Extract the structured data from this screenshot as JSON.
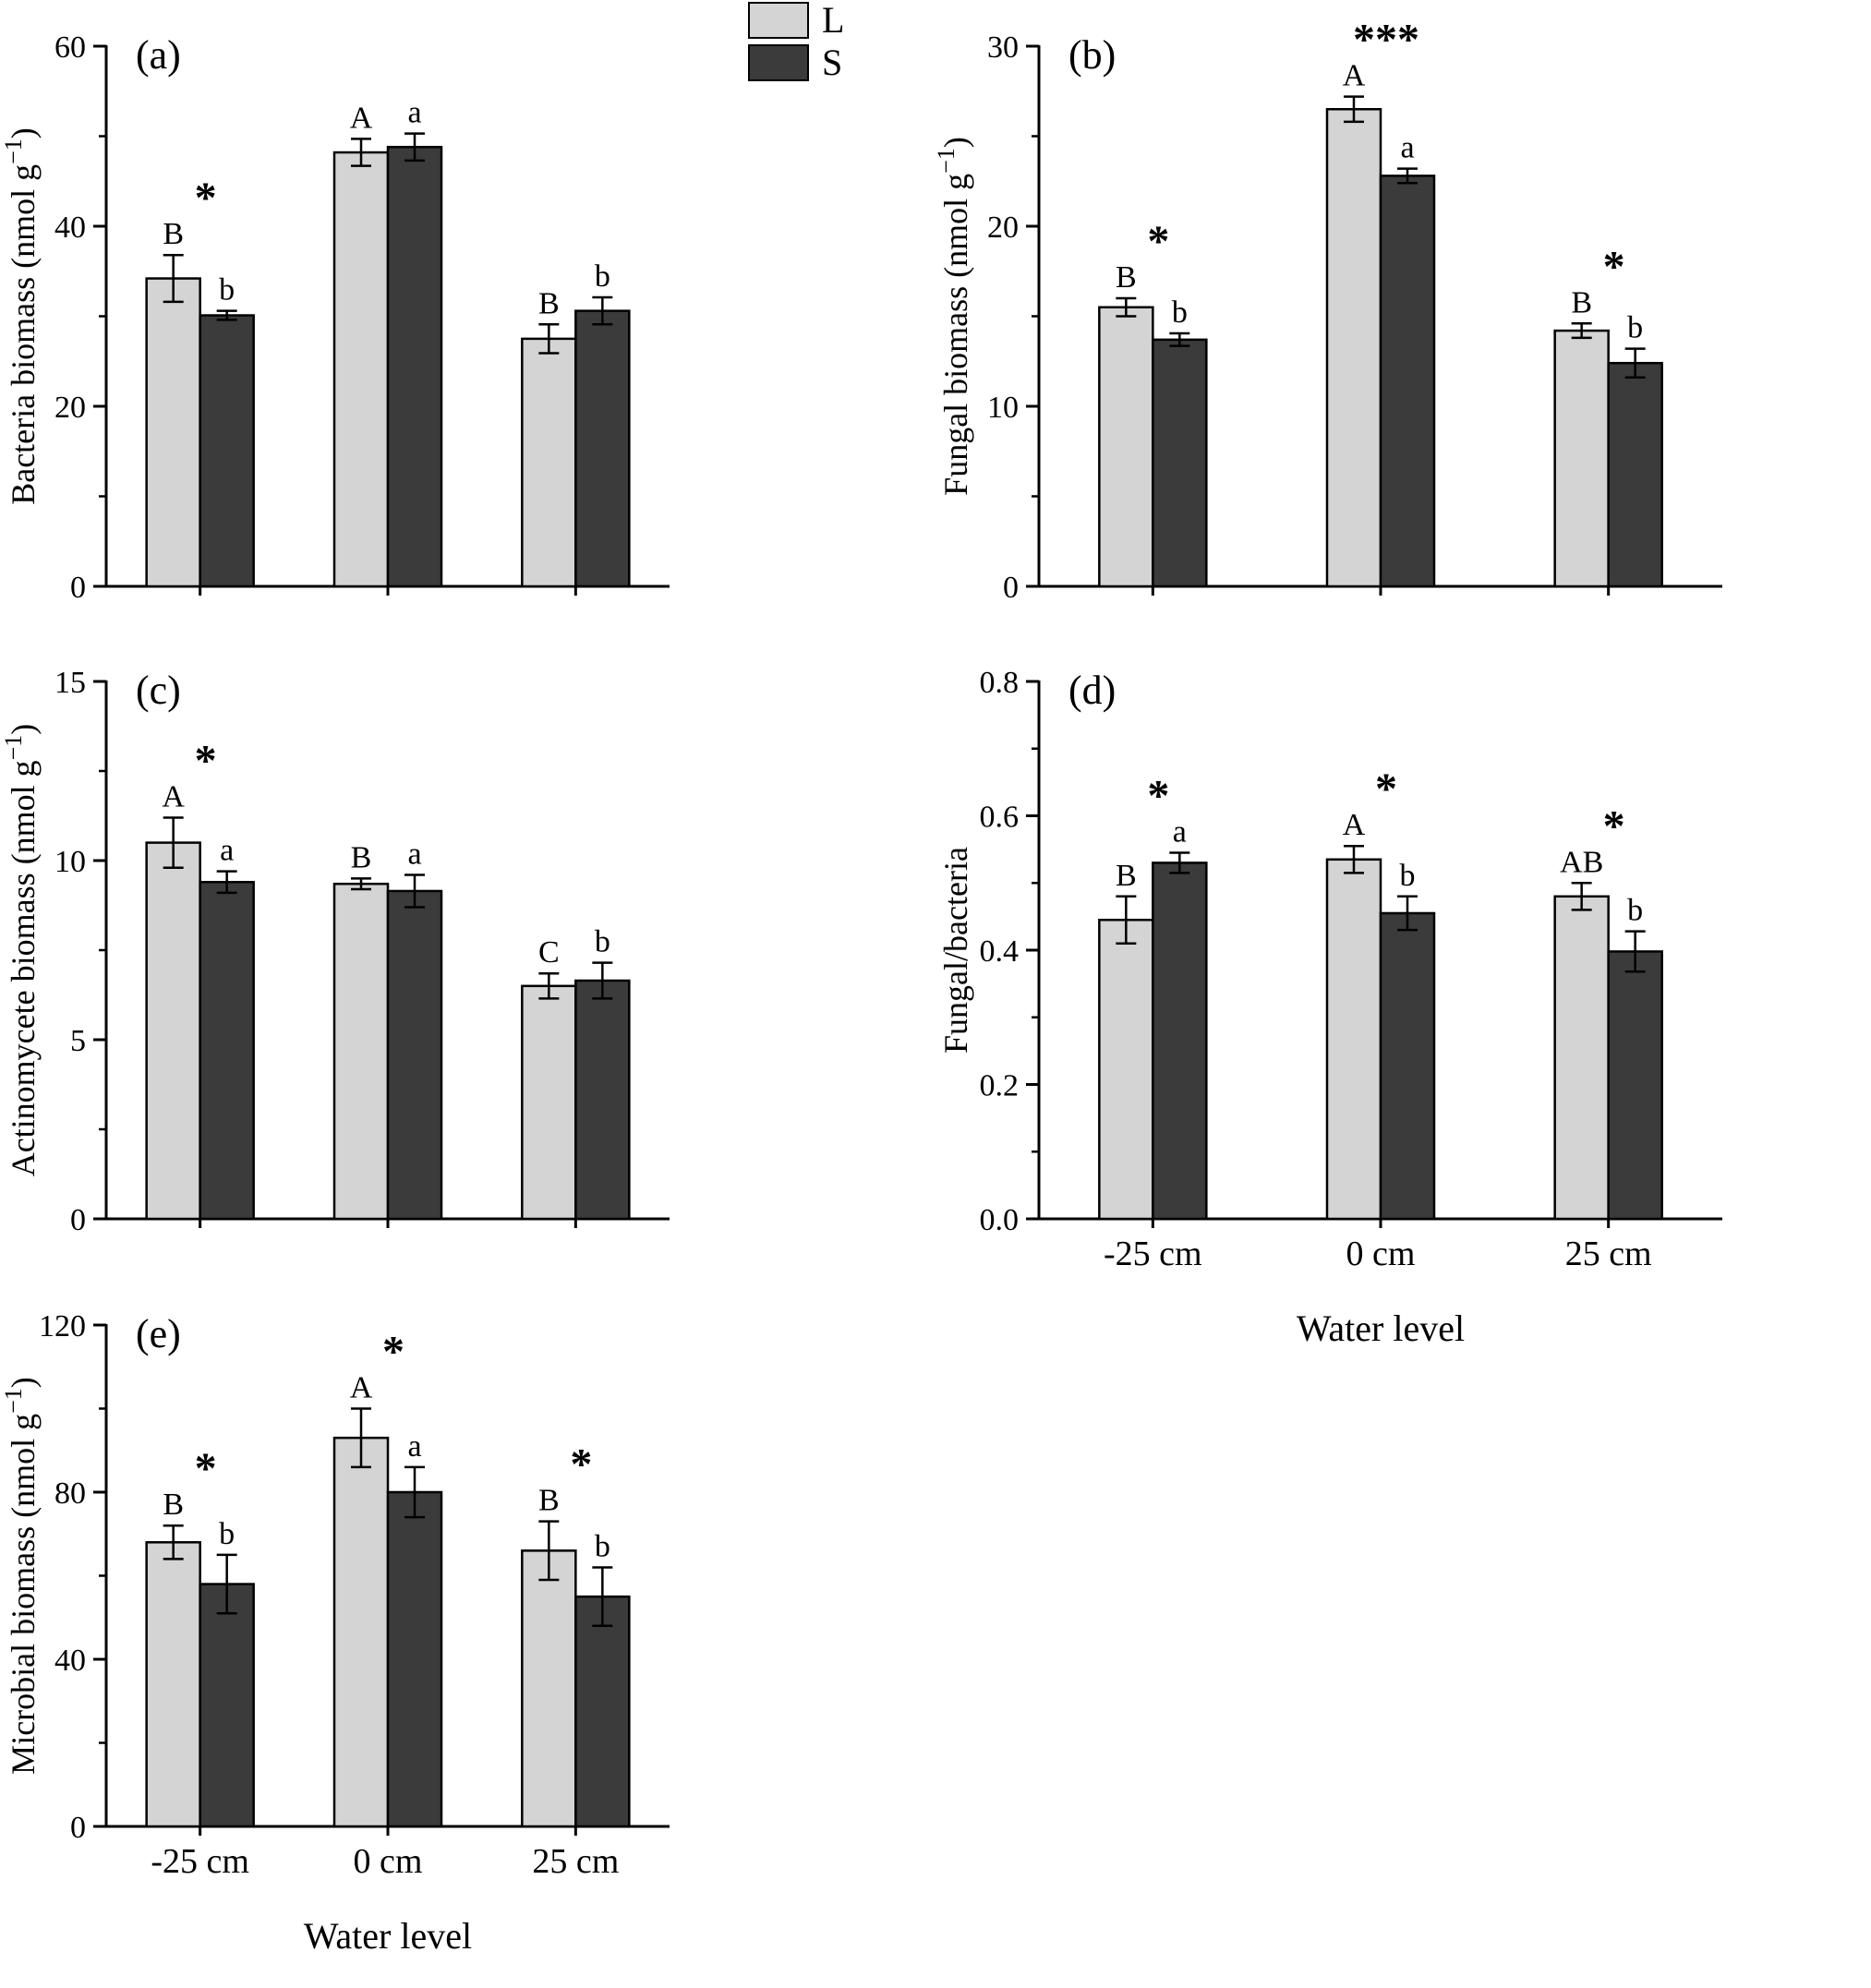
{
  "figure": {
    "background": "#ffffff",
    "series_colors": {
      "L": "#d4d4d4",
      "S": "#3b3b3b"
    },
    "legend": {
      "position": "top-center",
      "items": [
        {
          "label": "L",
          "color": "#d4d4d4"
        },
        {
          "label": "S",
          "color": "#3b3b3b"
        }
      ]
    },
    "xlabel_shared": "Water level"
  },
  "chart_data": [
    {
      "id": "a",
      "type": "bar",
      "panel_label": "(a)",
      "ylabel": "Bacteria biomass (nmol g⁻¹)",
      "ylim": [
        0,
        60
      ],
      "yticks": [
        0,
        20,
        40,
        60
      ],
      "ytick_labels": [
        "0",
        "20",
        "40",
        "60"
      ],
      "yticks_minor": [
        10,
        30,
        50
      ],
      "categories": [
        "-25 cm",
        "0 cm",
        "25 cm"
      ],
      "show_x_labels": false,
      "xlabel": "",
      "grid": false,
      "legend_position": "top",
      "series": [
        {
          "name": "L",
          "values": [
            34.2,
            48.2,
            27.5
          ],
          "errors": [
            2.6,
            1.5,
            1.6
          ],
          "letters": [
            "B",
            "A",
            "B"
          ]
        },
        {
          "name": "S",
          "values": [
            30.1,
            48.8,
            30.6
          ],
          "errors": [
            0.5,
            1.5,
            1.5
          ],
          "letters": [
            "b",
            "a",
            "b"
          ]
        }
      ],
      "sig": [
        "*",
        "",
        ""
      ]
    },
    {
      "id": "b",
      "type": "bar",
      "panel_label": "(b)",
      "ylabel": "Fungal biomass (nmol g⁻¹)",
      "ylim": [
        0,
        30
      ],
      "yticks": [
        0,
        10,
        20,
        30
      ],
      "ytick_labels": [
        "0",
        "10",
        "20",
        "30"
      ],
      "yticks_minor": [
        5,
        15,
        25
      ],
      "categories": [
        "-25 cm",
        "0 cm",
        "25 cm"
      ],
      "show_x_labels": false,
      "xlabel": "",
      "grid": false,
      "series": [
        {
          "name": "L",
          "values": [
            15.5,
            26.5,
            14.2
          ],
          "errors": [
            0.5,
            0.7,
            0.4
          ],
          "letters": [
            "B",
            "A",
            "B"
          ]
        },
        {
          "name": "S",
          "values": [
            13.7,
            22.8,
            12.4
          ],
          "errors": [
            0.35,
            0.4,
            0.8
          ],
          "letters": [
            "b",
            "a",
            "b"
          ]
        }
      ],
      "sig": [
        "*",
        "***",
        "*"
      ]
    },
    {
      "id": "c",
      "type": "bar",
      "panel_label": "(c)",
      "ylabel": "Actinomycete biomass (nmol g⁻¹)",
      "ylim": [
        0,
        15
      ],
      "yticks": [
        0,
        5,
        10,
        15
      ],
      "ytick_labels": [
        "0",
        "5",
        "10",
        "15"
      ],
      "yticks_minor": [
        2.5,
        7.5,
        12.5
      ],
      "categories": [
        "-25 cm",
        "0 cm",
        "25 cm"
      ],
      "show_x_labels": false,
      "xlabel": "",
      "grid": false,
      "series": [
        {
          "name": "L",
          "values": [
            10.5,
            9.35,
            6.5
          ],
          "errors": [
            0.7,
            0.15,
            0.35
          ],
          "letters": [
            "A",
            "B",
            "C"
          ]
        },
        {
          "name": "S",
          "values": [
            9.4,
            9.15,
            6.65
          ],
          "errors": [
            0.3,
            0.45,
            0.5
          ],
          "letters": [
            "a",
            "a",
            "b"
          ]
        }
      ],
      "sig": [
        "*",
        "",
        ""
      ]
    },
    {
      "id": "d",
      "type": "bar",
      "panel_label": "(d)",
      "ylabel": "Fungal/bacteria",
      "ylim": [
        0,
        0.8
      ],
      "yticks": [
        0,
        0.2,
        0.4,
        0.6,
        0.8
      ],
      "ytick_labels": [
        "0.0",
        "0.2",
        "0.4",
        "0.6",
        "0.8"
      ],
      "yticks_minor": [
        0.1,
        0.3,
        0.5,
        0.7
      ],
      "categories": [
        "-25 cm",
        "0 cm",
        "25 cm"
      ],
      "show_x_labels": true,
      "xlabel": "Water level",
      "grid": false,
      "series": [
        {
          "name": "L",
          "values": [
            0.445,
            0.535,
            0.48
          ],
          "errors": [
            0.035,
            0.02,
            0.02
          ],
          "letters": [
            "B",
            "A",
            "AB"
          ]
        },
        {
          "name": "S",
          "values": [
            0.53,
            0.455,
            0.398
          ],
          "errors": [
            0.015,
            0.025,
            0.03
          ],
          "letters": [
            "a",
            "b",
            "b"
          ]
        }
      ],
      "sig": [
        "*",
        "*",
        "*"
      ]
    },
    {
      "id": "e",
      "type": "bar",
      "panel_label": "(e)",
      "ylabel": "Microbial biomass (nmol g⁻¹)",
      "ylim": [
        0,
        120
      ],
      "yticks": [
        0,
        40,
        80,
        120
      ],
      "ytick_labels": [
        "0",
        "40",
        "80",
        "120"
      ],
      "yticks_minor": [
        20,
        60,
        100
      ],
      "categories": [
        "-25 cm",
        "0 cm",
        "25 cm"
      ],
      "show_x_labels": true,
      "xlabel": "Water level",
      "grid": false,
      "series": [
        {
          "name": "L",
          "values": [
            68,
            93,
            66
          ],
          "errors": [
            4,
            7,
            7
          ],
          "letters": [
            "B",
            "A",
            "B"
          ]
        },
        {
          "name": "S",
          "values": [
            58,
            80,
            55
          ],
          "errors": [
            7,
            6,
            7
          ],
          "letters": [
            "b",
            "a",
            "b"
          ]
        }
      ],
      "sig": [
        "*",
        "*",
        "*"
      ]
    }
  ]
}
